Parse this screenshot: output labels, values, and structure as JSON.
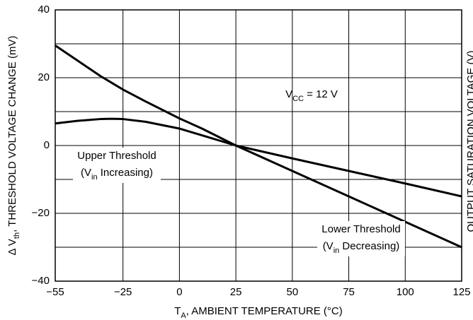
{
  "chart_data": {
    "type": "line",
    "x_label": [
      {
        "text": "T"
      },
      {
        "text": "A",
        "sub": true
      },
      {
        "text": ", AMBIENT TEMPERATURE (°C)"
      }
    ],
    "y_label": [
      {
        "text": "Δ V"
      },
      {
        "text": "th",
        "sub": true
      },
      {
        "text": ", THRESHOLD VOLTAGE CHANGE (mV)"
      }
    ],
    "y2_label": "OUTPUT SATURATION VOLTAGE (V)",
    "x": [
      -55,
      -45,
      -35,
      -30,
      -25,
      -15,
      0,
      10,
      25,
      50,
      75,
      100,
      125
    ],
    "series": [
      {
        "name": [
          {
            "text": "Upper Threshold"
          }
        ],
        "name_line2": [
          {
            "text": "(V"
          },
          {
            "text": "in",
            "sub": true
          },
          {
            "text": " Increasing)"
          }
        ],
        "color": "#000000",
        "values": [
          6.5,
          7.3,
          7.8,
          7.9,
          7.8,
          7,
          5,
          3,
          0,
          -3.8,
          -7.5,
          -11.2,
          -15
        ]
      },
      {
        "name": [
          {
            "text": "Lower Threshold"
          }
        ],
        "name_line2": [
          {
            "text": "(V"
          },
          {
            "text": "in",
            "sub": true
          },
          {
            "text": " Decreasing)"
          }
        ],
        "color": "#000000",
        "values": [
          29.5,
          25,
          20.5,
          18.5,
          16.5,
          13,
          8,
          5,
          0,
          -7.5,
          -15,
          -22.5,
          -30
        ]
      }
    ],
    "annotation": [
      {
        "text": "V"
      },
      {
        "text": "CC",
        "sub": true
      },
      {
        "text": " = 12 V"
      }
    ],
    "xlim": [
      -55,
      125
    ],
    "xticks": [
      {
        "value": -55,
        "label": "−55"
      },
      {
        "value": -25,
        "label": "−25"
      },
      0,
      25,
      50,
      75,
      100,
      125
    ],
    "ylim": [
      -40,
      40
    ],
    "yticks": [
      {
        "value": -40,
        "label": "−40"
      },
      {
        "value": -20,
        "label": "−20"
      },
      0,
      20,
      40
    ],
    "yminor": [
      -30,
      -10,
      10,
      30
    ],
    "grid": true
  }
}
